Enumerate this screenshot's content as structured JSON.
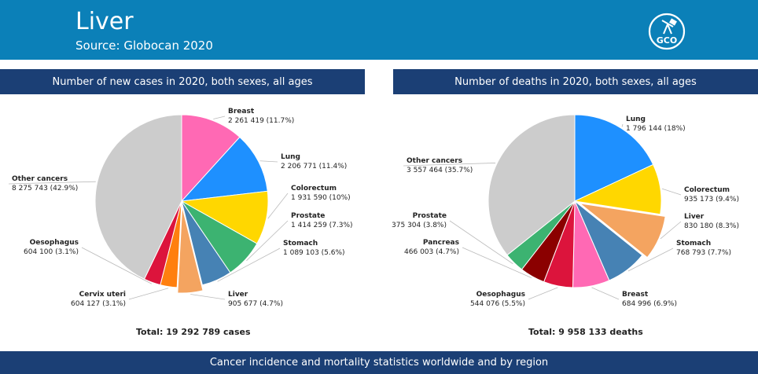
{
  "header": {
    "title": "Liver",
    "source": "Source: Globocan 2020",
    "logo_text": "GCO"
  },
  "footer": {
    "text": "Cancer incidence and mortality statistics worldwide and by region"
  },
  "chart_data": [
    {
      "type": "pie",
      "title": "Number of new cases in 2020, both sexes, all ages",
      "total_label": "Total: 19 292 789 cases",
      "slices": [
        {
          "name": "Breast",
          "value": 2261419,
          "value_label": "2 261 419 (11.7%)",
          "percent": 11.7,
          "color": "#ff69b4",
          "highlight": false
        },
        {
          "name": "Lung",
          "value": 2206771,
          "value_label": "2 206 771 (11.4%)",
          "percent": 11.4,
          "color": "#1e90ff",
          "highlight": false
        },
        {
          "name": "Colorectum",
          "value": 1931590,
          "value_label": "1 931 590 (10%)",
          "percent": 10.0,
          "color": "#ffd700",
          "highlight": false
        },
        {
          "name": "Prostate",
          "value": 1414259,
          "value_label": "1 414 259 (7.3%)",
          "percent": 7.3,
          "color": "#3cb371",
          "highlight": false
        },
        {
          "name": "Stomach",
          "value": 1089103,
          "value_label": "1 089 103 (5.6%)",
          "percent": 5.6,
          "color": "#4682b4",
          "highlight": false
        },
        {
          "name": "Liver",
          "value": 905677,
          "value_label": "905 677 (4.7%)",
          "percent": 4.7,
          "color": "#f4a460",
          "highlight": true
        },
        {
          "name": "Cervix uteri",
          "value": 604127,
          "value_label": "604 127 (3.1%)",
          "percent": 3.1,
          "color": "#ff7f0e",
          "highlight": false
        },
        {
          "name": "Oesophagus",
          "value": 604100,
          "value_label": "604 100 (3.1%)",
          "percent": 3.1,
          "color": "#dc143c",
          "highlight": false
        },
        {
          "name": "Other cancers",
          "value": 8275743,
          "value_label": "8 275 743 (42.9%)",
          "percent": 42.9,
          "color": "#cccccc",
          "highlight": false
        }
      ]
    },
    {
      "type": "pie",
      "title": "Number of deaths in 2020, both sexes, all ages",
      "total_label": "Total: 9 958 133 deaths",
      "slices": [
        {
          "name": "Lung",
          "value": 1796144,
          "value_label": "1 796 144 (18%)",
          "percent": 18.0,
          "color": "#1e90ff",
          "highlight": false
        },
        {
          "name": "Colorectum",
          "value": 935173,
          "value_label": "935 173 (9.4%)",
          "percent": 9.4,
          "color": "#ffd700",
          "highlight": false
        },
        {
          "name": "Liver",
          "value": 830180,
          "value_label": "830 180 (8.3%)",
          "percent": 8.3,
          "color": "#f4a460",
          "highlight": true
        },
        {
          "name": "Stomach",
          "value": 768793,
          "value_label": "768 793 (7.7%)",
          "percent": 7.7,
          "color": "#4682b4",
          "highlight": false
        },
        {
          "name": "Breast",
          "value": 684996,
          "value_label": "684 996 (6.9%)",
          "percent": 6.9,
          "color": "#ff69b4",
          "highlight": false
        },
        {
          "name": "Oesophagus",
          "value": 544076,
          "value_label": "544 076 (5.5%)",
          "percent": 5.5,
          "color": "#dc143c",
          "highlight": false
        },
        {
          "name": "Pancreas",
          "value": 466003,
          "value_label": "466 003 (4.7%)",
          "percent": 4.7,
          "color": "#8b0000",
          "highlight": false
        },
        {
          "name": "Prostate",
          "value": 375304,
          "value_label": "375 304 (3.8%)",
          "percent": 3.8,
          "color": "#3cb371",
          "highlight": false
        },
        {
          "name": "Other cancers",
          "value": 3557464,
          "value_label": "3 557 464 (35.7%)",
          "percent": 35.7,
          "color": "#cccccc",
          "highlight": false
        }
      ]
    }
  ]
}
